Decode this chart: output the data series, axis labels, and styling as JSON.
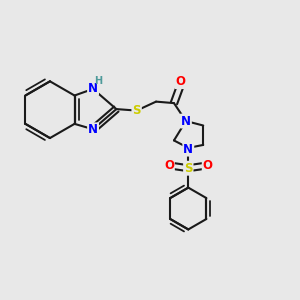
{
  "bg_color": "#e8e8e8",
  "bond_color": "#1a1a1a",
  "bond_width": 1.5,
  "atom_colors": {
    "N": "#0000ff",
    "S": "#cccc00",
    "O": "#ff0000",
    "H": "#4e9a9a",
    "C": "#1a1a1a"
  },
  "font_size_atom": 8.5,
  "font_size_H": 7.0
}
